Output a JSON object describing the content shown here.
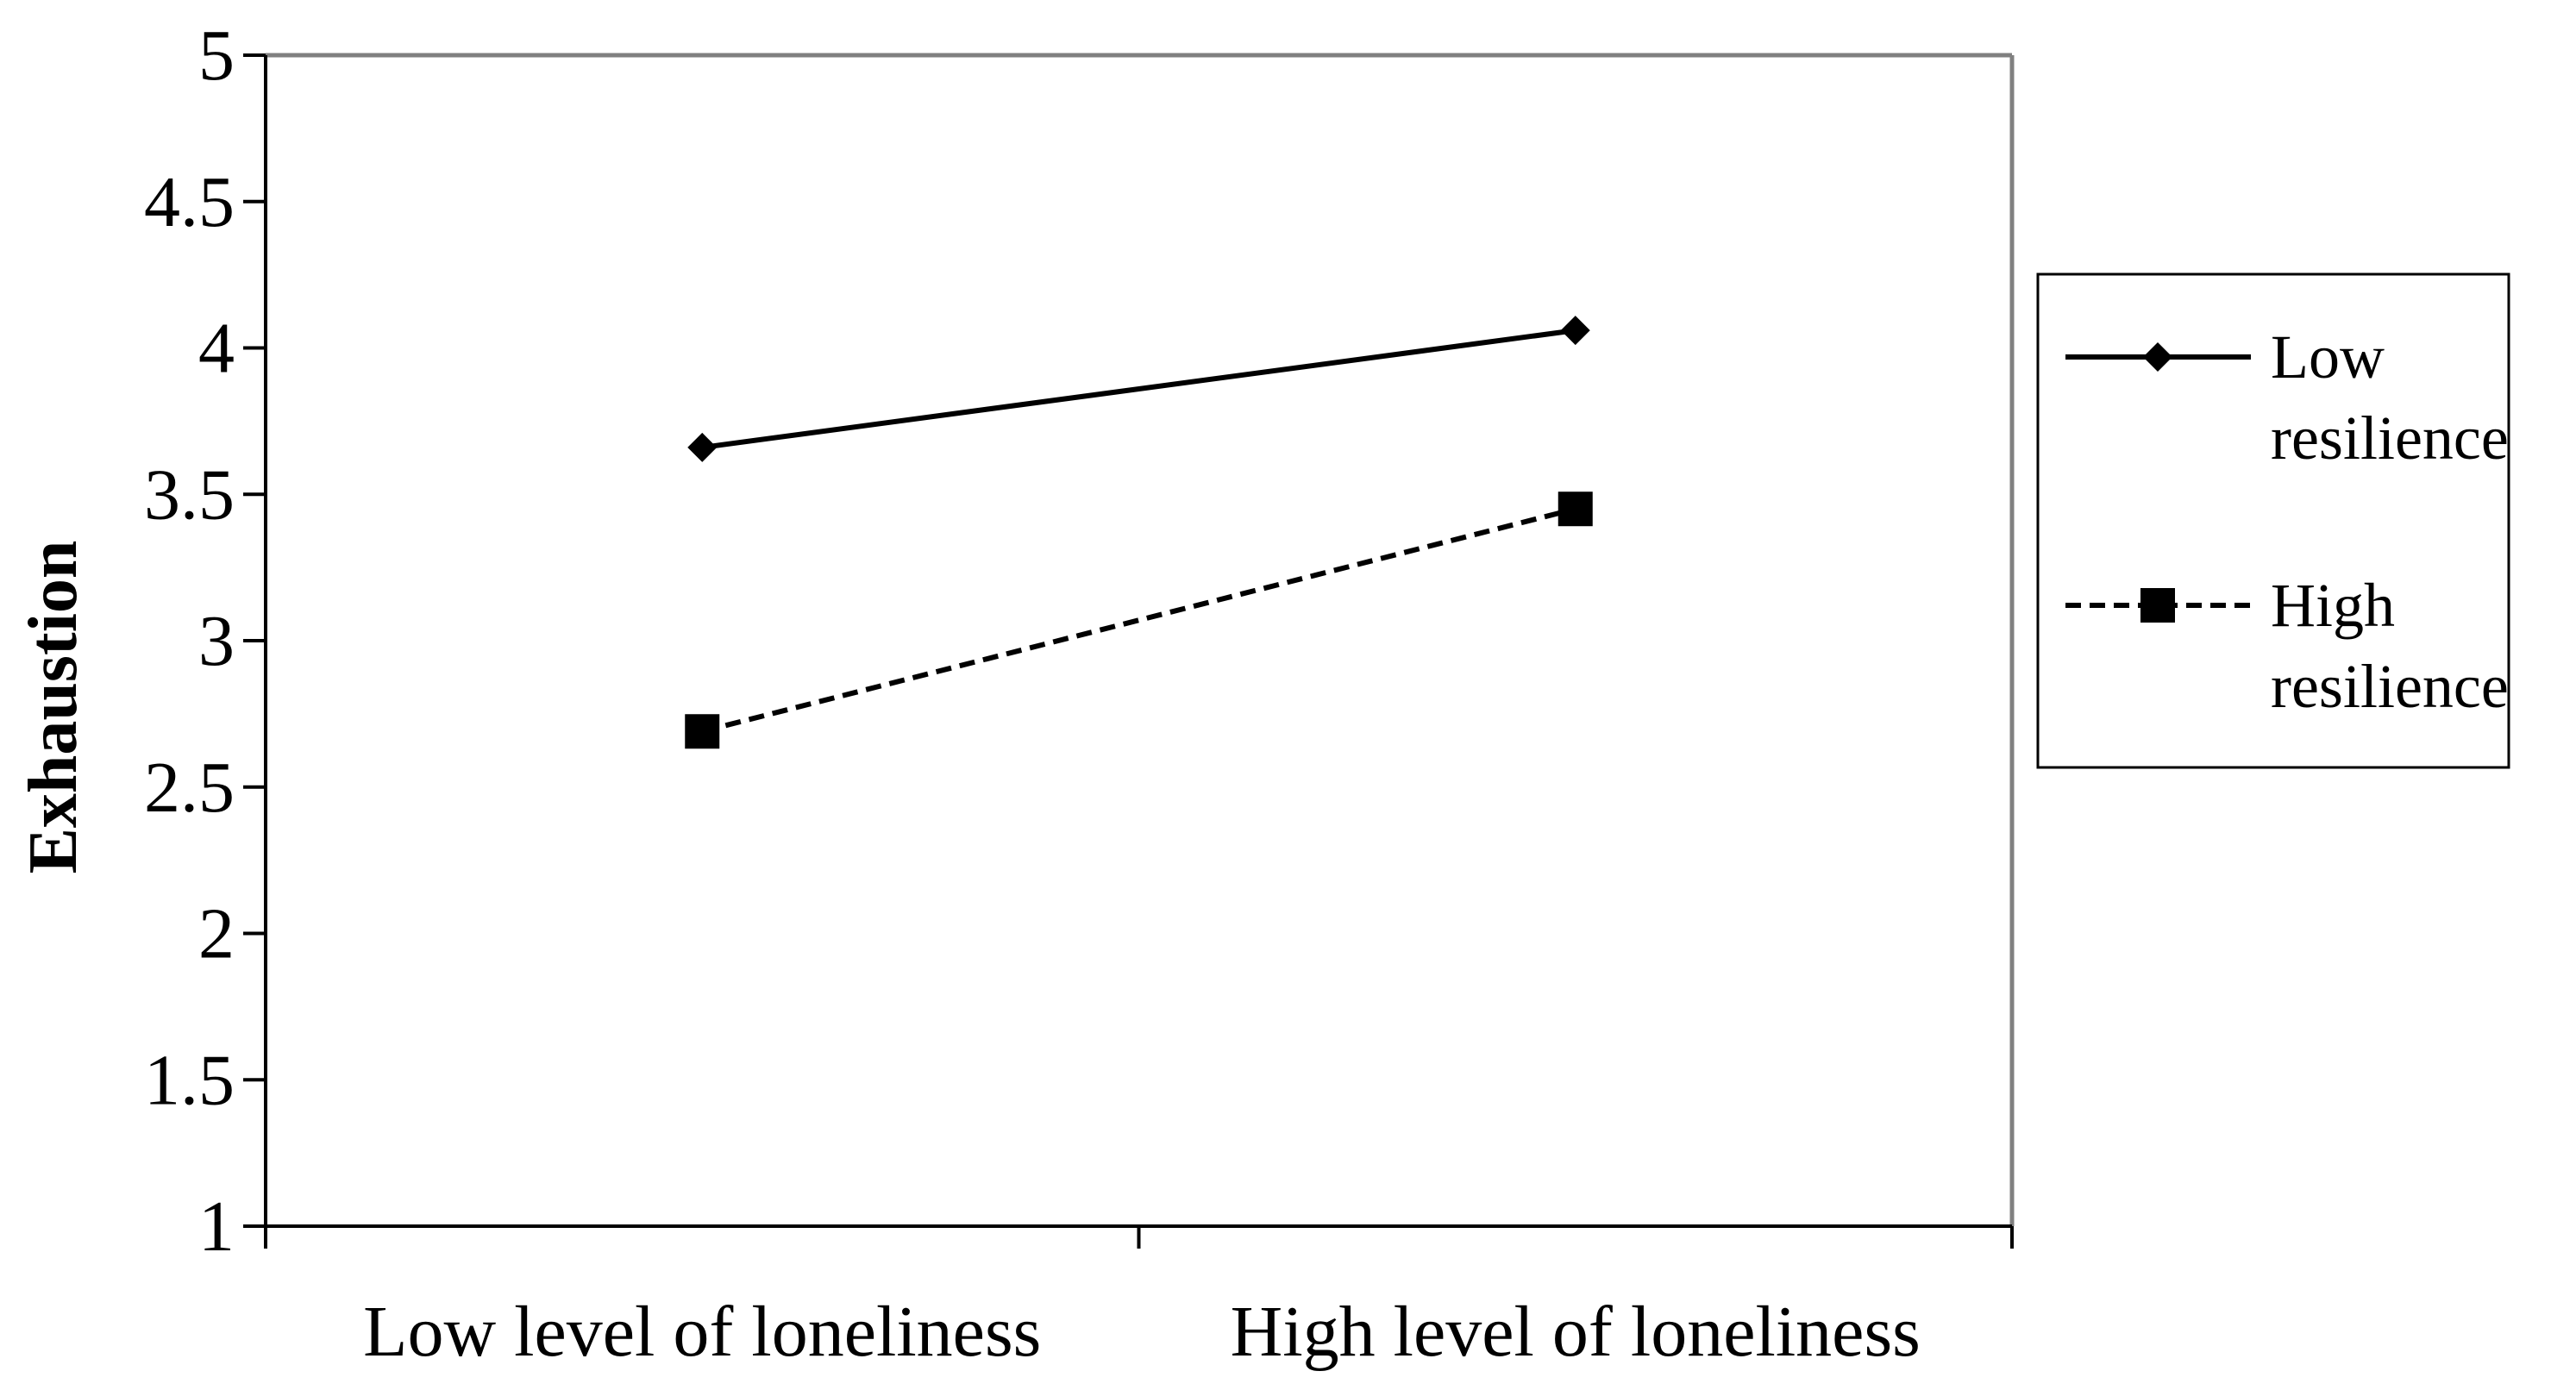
{
  "chart_data": {
    "type": "line",
    "title": "",
    "xlabel": "",
    "ylabel": "Exhaustion",
    "categories": [
      "Low level of loneliness",
      "High level of loneliness"
    ],
    "ylim": [
      1,
      5
    ],
    "yticks": [
      "1",
      "1.5",
      "2",
      "2.5",
      "3",
      "3.5",
      "4",
      "4.5",
      "5"
    ],
    "grid": false,
    "legend_position": "right",
    "series": [
      {
        "name": "Low resilience",
        "name_lines": [
          "Low",
          "resilience"
        ],
        "values": [
          3.66,
          4.06
        ],
        "line_style": "solid",
        "marker": "diamond",
        "color": "#000000"
      },
      {
        "name": "High resilience",
        "name_lines": [
          "High",
          "resilience"
        ],
        "values": [
          2.69,
          3.45
        ],
        "line_style": "dashed",
        "marker": "square",
        "color": "#000000"
      }
    ],
    "colors": {
      "plot_border": "#808080",
      "axis": "#000000",
      "background": "#ffffff"
    }
  }
}
